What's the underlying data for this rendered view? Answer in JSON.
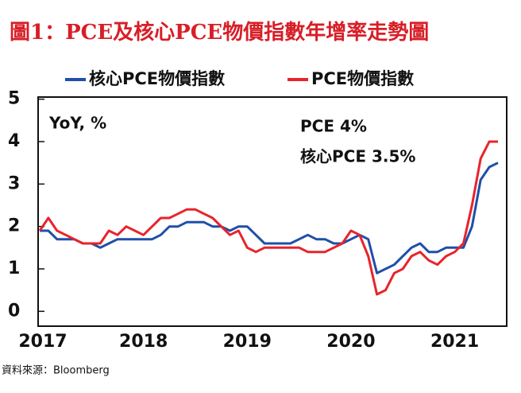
{
  "chart_data": {
    "type": "line",
    "title": "圖1：PCE及核心PCE物價指數年增率走勢圖",
    "source": "資料來源：Bloomberg",
    "annotations": [
      "YoY, %",
      "PCE 4%",
      "核心PCE 3.5%"
    ],
    "categories": [
      "2017",
      null,
      null,
      null,
      null,
      null,
      null,
      null,
      null,
      null,
      null,
      null,
      "2018",
      null,
      null,
      null,
      null,
      null,
      null,
      null,
      null,
      null,
      null,
      null,
      "2019",
      null,
      null,
      null,
      null,
      null,
      null,
      null,
      null,
      null,
      null,
      null,
      "2020",
      null,
      null,
      null,
      null,
      null,
      null,
      null,
      null,
      null,
      null,
      null,
      "2021",
      null,
      null,
      null,
      null,
      null
    ],
    "series": [
      {
        "name": "核心PCE物價指數",
        "color": "#1f4fa8",
        "values": [
          1.9,
          1.9,
          1.7,
          1.7,
          1.7,
          1.6,
          1.6,
          1.5,
          1.6,
          1.7,
          1.7,
          1.7,
          1.7,
          1.7,
          1.8,
          2.0,
          2.0,
          2.1,
          2.1,
          2.1,
          2.0,
          2.0,
          1.9,
          2.0,
          2.0,
          1.8,
          1.6,
          1.6,
          1.6,
          1.6,
          1.7,
          1.8,
          1.7,
          1.7,
          1.6,
          1.6,
          1.7,
          1.8,
          1.7,
          0.9,
          1.0,
          1.1,
          1.3,
          1.5,
          1.6,
          1.4,
          1.4,
          1.5,
          1.5,
          1.5,
          2.0,
          3.1,
          3.4,
          3.5
        ]
      },
      {
        "name": "PCE物價指數",
        "color": "#e8242b",
        "values": [
          1.9,
          2.2,
          1.9,
          1.8,
          1.7,
          1.6,
          1.6,
          1.6,
          1.9,
          1.8,
          2.0,
          1.9,
          1.8,
          2.0,
          2.2,
          2.2,
          2.3,
          2.4,
          2.4,
          2.3,
          2.2,
          2.0,
          1.8,
          1.9,
          1.5,
          1.4,
          1.5,
          1.5,
          1.5,
          1.5,
          1.5,
          1.4,
          1.4,
          1.4,
          1.5,
          1.6,
          1.9,
          1.8,
          1.3,
          0.4,
          0.5,
          0.9,
          1.0,
          1.3,
          1.4,
          1.2,
          1.1,
          1.3,
          1.4,
          1.6,
          2.5,
          3.6,
          4.0,
          4.0
        ]
      }
    ],
    "ylim": [
      -0.35,
      5.05
    ],
    "yticks": [
      0,
      1,
      2,
      3,
      4,
      5
    ]
  }
}
